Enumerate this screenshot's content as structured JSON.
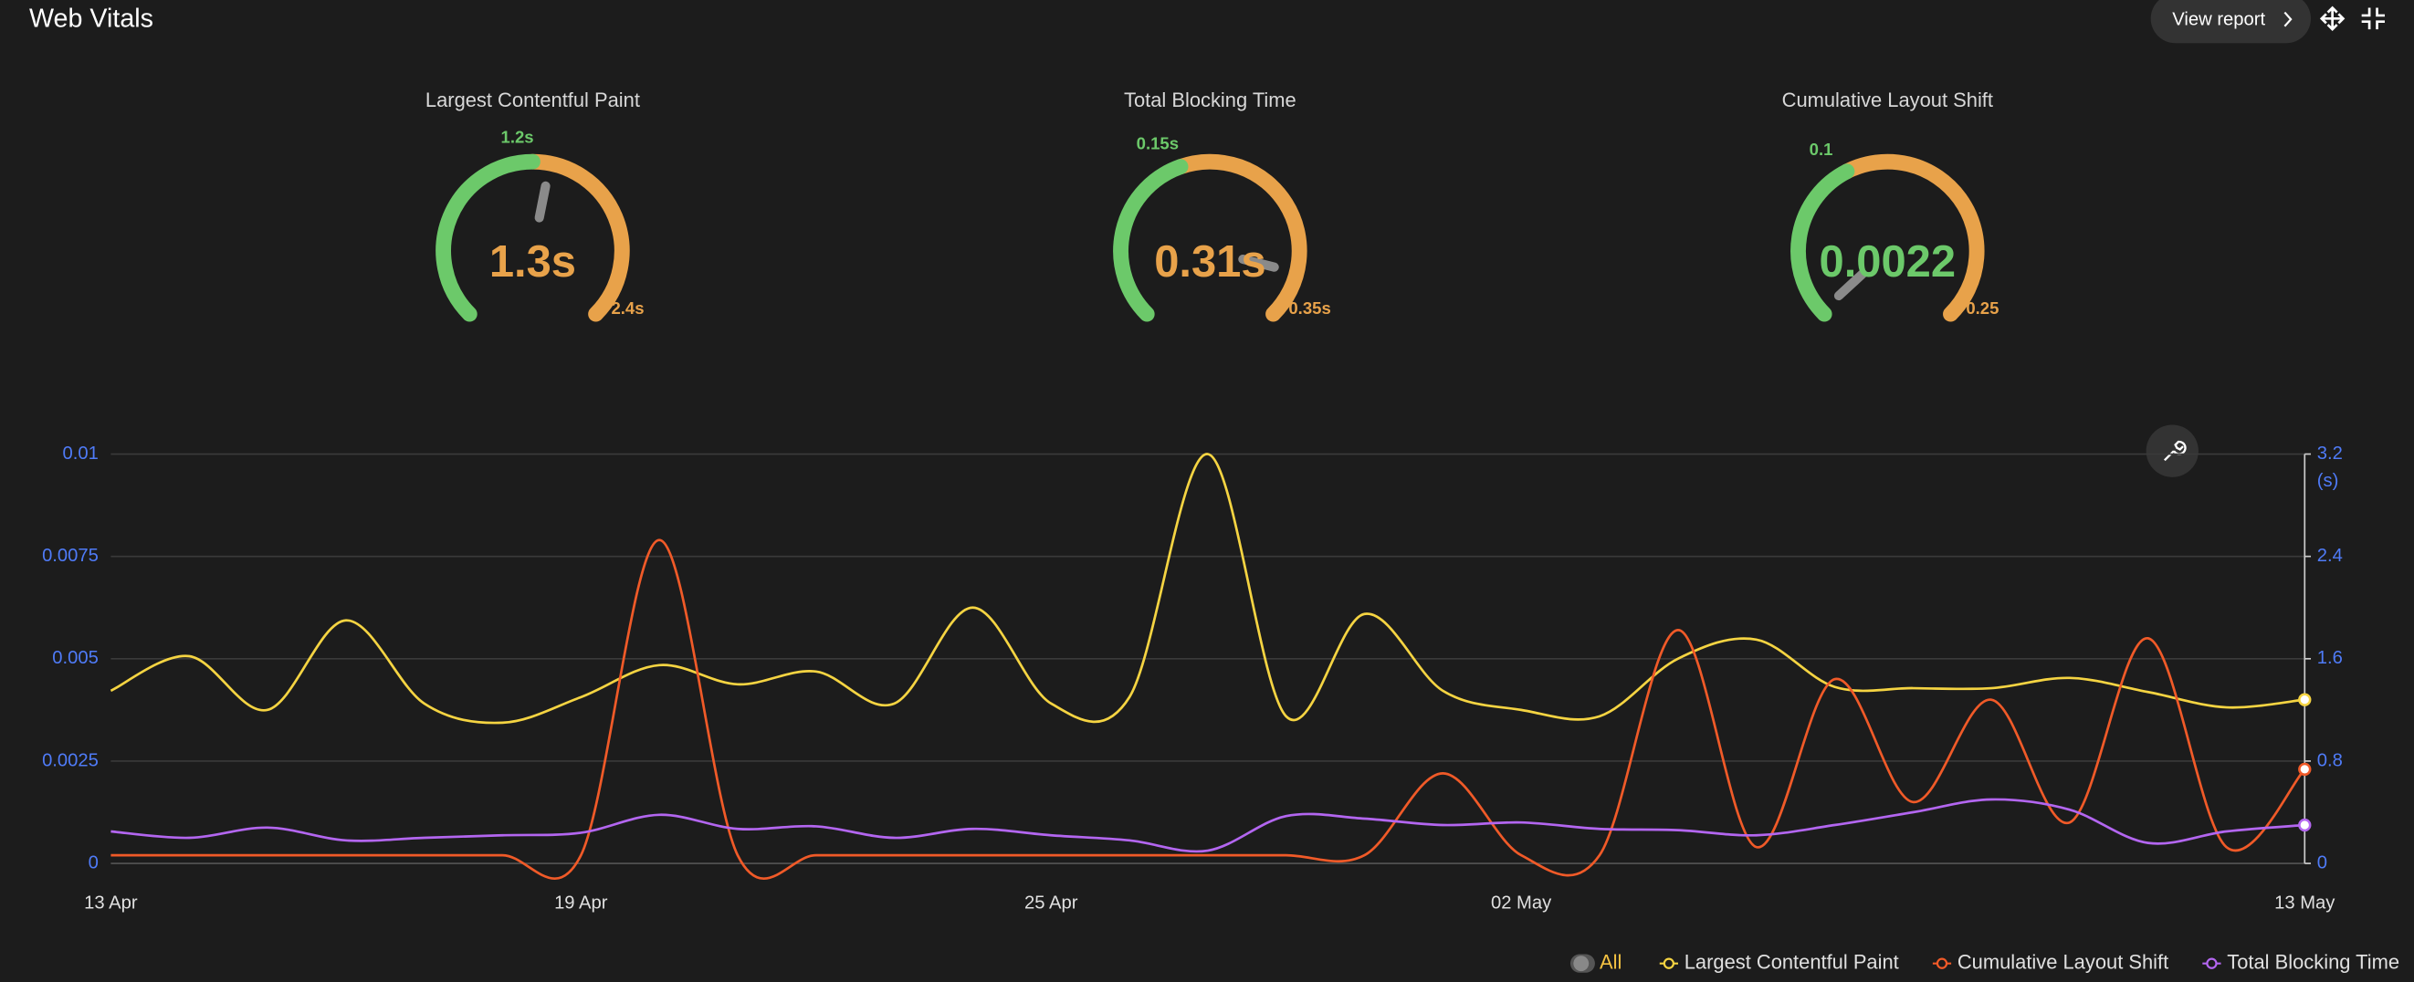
{
  "header": {
    "title": "Web Vitals",
    "button": "View report"
  },
  "chart_data": [
    {
      "type": "gauge",
      "title": "Largest Contentful Paint",
      "value": 1.3,
      "value_label": "1.3s",
      "ylim": [
        0,
        2.4
      ],
      "ticks": [
        {
          "value": 1.2,
          "label": "1.2s"
        },
        {
          "value": 2.4,
          "label": "2.4s"
        }
      ],
      "colors": {
        "good": "#6cc96a",
        "poor": "#e8a24a"
      }
    },
    {
      "type": "gauge",
      "title": "Total Blocking Time",
      "value": 0.31,
      "value_label": "0.31s",
      "ylim": [
        0,
        0.35
      ],
      "ticks": [
        {
          "value": 0.15,
          "label": "0.15s"
        },
        {
          "value": 0.35,
          "label": "0.35s"
        }
      ],
      "colors": {
        "good": "#6cc96a",
        "poor": "#e8a24a"
      }
    },
    {
      "type": "gauge",
      "title": "Cumulative Layout Shift",
      "value": 0.0022,
      "ylim": [
        0,
        0.25
      ],
      "ticks": [
        0.1,
        0.25
      ],
      "colors": {
        "good": "#6cc96a",
        "poor": "#e8a24a"
      }
    },
    {
      "type": "line",
      "categories": [
        "13 Apr",
        null,
        null,
        null,
        null,
        null,
        "19 Apr",
        null,
        null,
        null,
        null,
        null,
        "25 Apr",
        null,
        null,
        null,
        null,
        null,
        "02 May",
        null,
        null,
        null,
        null,
        null,
        null,
        null,
        null,
        null,
        "13 May"
      ],
      "ylim": [
        0,
        0.01
      ],
      "yticks": [
        0,
        0.0025,
        0.005,
        0.0075,
        0.01
      ],
      "y2lim": [
        0,
        3.2
      ],
      "y2ticks": [
        0,
        0.8,
        1.6,
        2.4,
        3.2
      ],
      "y2_label": "(s)",
      "grid": true,
      "legend_toggle": "All",
      "series": [
        {
          "name": "Largest Contentful Paint",
          "color": "#f5d442",
          "axis": "y2",
          "values": [
            1.35,
            1.62,
            1.2,
            1.9,
            1.25,
            1.1,
            1.3,
            1.55,
            1.4,
            1.5,
            1.25,
            2.0,
            1.25,
            1.3,
            3.2,
            1.15,
            1.95,
            1.35,
            1.2,
            1.15,
            1.6,
            1.75,
            1.38,
            1.37,
            1.37,
            1.45,
            1.34,
            1.22,
            1.28
          ]
        },
        {
          "name": "Cumulative Layout Shift",
          "color": "#f05a28",
          "values": [
            0.0002,
            0.0002,
            0.0002,
            0.0002,
            0.0002,
            0.0002,
            0.0002,
            0.0079,
            0.0002,
            0.0002,
            0.0002,
            0.0002,
            0.0002,
            0.0002,
            0.0002,
            0.0002,
            0.0002,
            0.0022,
            0.0002,
            0.0002,
            0.0057,
            0.0004,
            0.0045,
            0.0015,
            0.004,
            0.001,
            0.0055,
            0.0004,
            0.0023
          ]
        },
        {
          "name": "Total Blocking Time",
          "color": "#b366f0",
          "axis": "y2",
          "values": [
            0.25,
            0.2,
            0.28,
            0.18,
            0.2,
            0.22,
            0.24,
            0.38,
            0.27,
            0.29,
            0.2,
            0.27,
            0.22,
            0.18,
            0.1,
            0.37,
            0.35,
            0.3,
            0.32,
            0.27,
            0.26,
            0.22,
            0.3,
            0.4,
            0.5,
            0.42,
            0.16,
            0.25,
            0.3
          ]
        }
      ]
    }
  ]
}
